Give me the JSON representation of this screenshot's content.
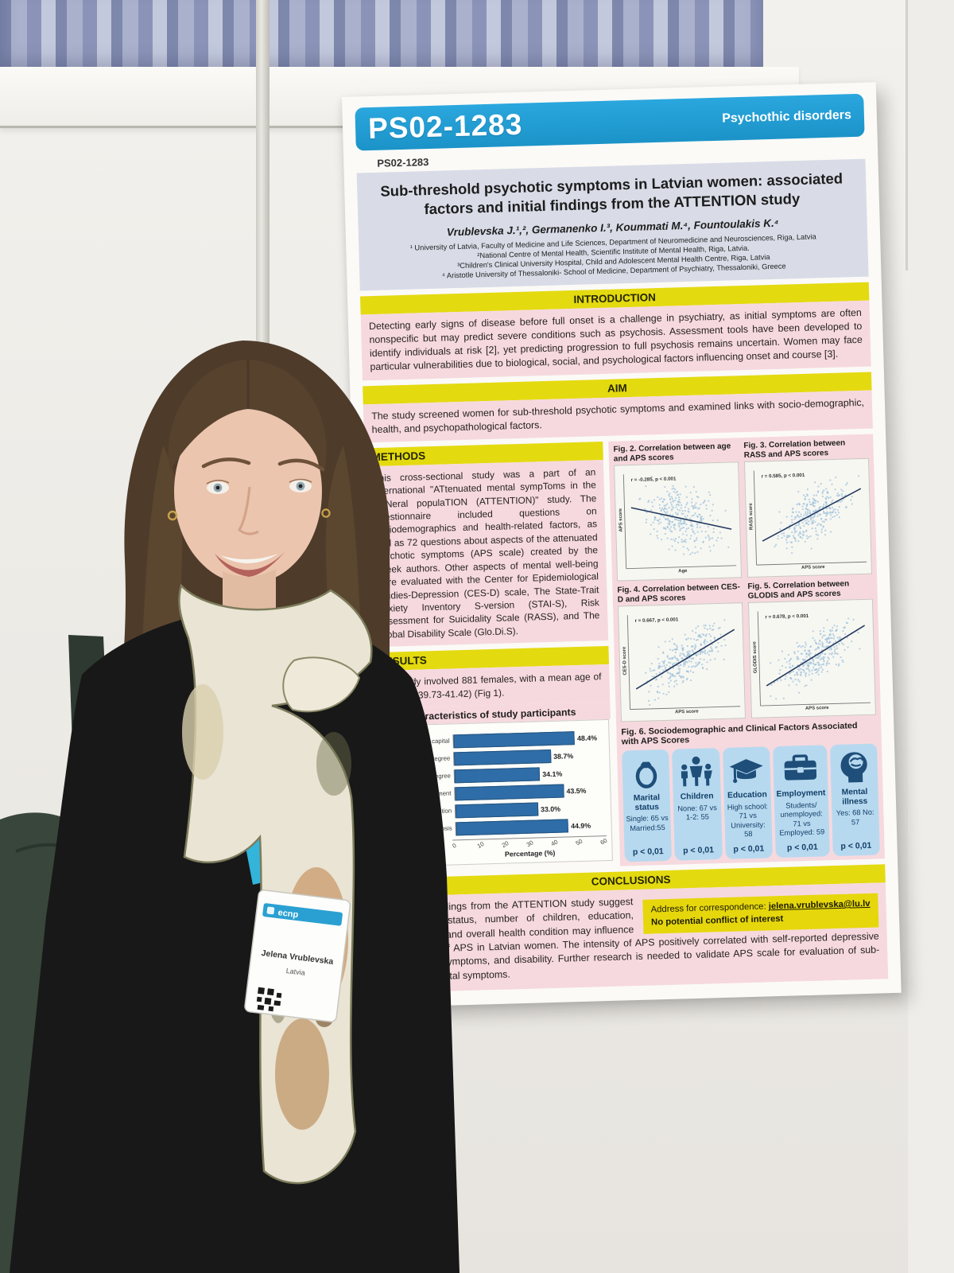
{
  "scene": {
    "lanyard_text": "ecnp",
    "badge": {
      "brand": "ecnp",
      "name": "Jelena Vrublevska",
      "country": "Latvia"
    }
  },
  "poster": {
    "header": {
      "code": "PS02-1283",
      "category": "Psychothic disorders"
    },
    "code_small": "PS02-1283",
    "title": "Sub-threshold psychotic symptoms in Latvian women: associated factors and initial findings from the ATTENTION study",
    "authors": "Vrublevska J.¹,², Germanenko I.³, Koummati M.⁴, Fountoulakis K.⁴",
    "affiliations": [
      "¹ University of Latvia, Faculty of Medicine and Life Sciences, Department of Neuromedicine and Neurosciences, Riga, Latvia",
      "²National Centre of Mental Health, Scientific Institute of Mental Health, Riga, Latvia.",
      "³Children's Clinical University Hospital, Child and Adolescent Mental Health Centre, Riga, Latvia",
      "⁴ Aristotle University of Thessaloniki- School of Medicine, Department of Psychiatry, Thessaloniki, Greece"
    ],
    "sections": {
      "introduction": {
        "heading": "INTRODUCTION",
        "text": "Detecting early signs of disease before full onset is a challenge in psychiatry, as initial symptoms are often nonspecific but may predict severe conditions such as psychosis. Assessment tools have been developed to identify individuals at risk [2], yet predicting progression to full psychosis remains uncertain. Women may face particular vulnerabilities due to biological, social, and psychological factors influencing onset and course [3]."
      },
      "aim": {
        "heading": "AIM",
        "text": "The study screened women for sub-threshold psychotic symptoms and examined links with socio-demographic, health, and psychopathological factors."
      },
      "methods": {
        "heading": "METHODS",
        "text": "This cross-sectional study was a part of an international \"ATtenuated mental sympToms in the gENeral populaTION (ATTENTION)\" study. The questionnaire included questions on sociodemographics and health-related factors, as well as 72 questions about aspects of the attenuated psychotic symptoms (APS scale) created by the Greek authors. Other aspects of mental well-being were evaluated with the Center for Epidemiological Studies-Depression (CES-D) scale, The State-Trait Anxiety Inventory S-version (STAI-S), Risk Assessment for Suicidality Scale (RASS), and The Global Disability Scale (Glo.Di.S)."
      },
      "results": {
        "heading": "RESULTS",
        "text": "The study involved 881 females, with a mean age of 40.57(CI 39.73-41.42) (Fig 1)."
      },
      "conclusions": {
        "heading": "CONCLUSIONS",
        "text": "The initial findings from the ATTENTION study suggest that marital status, number of children, education, employment, and overall health condition may influence the severity of APS in Latvian women. The intensity of APS positively correlated with self-reported depressive and anxiety symptoms, and disability. Further research is needed to validate APS scale for evaluation of sub-threshold mental symptoms."
      }
    },
    "correspondence": {
      "label": "Address for correspondence:",
      "email": "jelena.vrublevska@lu.lv",
      "conflict": "No potential conflict of interest"
    }
  },
  "chart_data": [
    {
      "id": "fig1",
      "type": "bar",
      "title": "Fig 1. Characteristics of study participants",
      "categories": [
        "Reside in capital",
        "Bachelor's degree",
        "Master's degree",
        "Public sector employment",
        "Chronic somatic condition",
        "Mental disease diagnosis"
      ],
      "values": [
        48.4,
        38.7,
        34.1,
        43.5,
        33.0,
        44.9
      ],
      "value_suffix": "%",
      "xlabel": "Percentage (%)",
      "xlim": [
        0,
        60
      ],
      "ticks": [
        0,
        10,
        20,
        30,
        40,
        50,
        60
      ],
      "bar_color": "#2f6da8",
      "orientation": "horizontal"
    },
    {
      "id": "fig2",
      "type": "scatter",
      "title": "Fig. 2. Correlation between age and APS scores",
      "annotation": "r = -0.285, p < 0.001",
      "r": -0.285,
      "xlabel": "Age",
      "ylabel": "APS score",
      "trend": "negative",
      "point_color": "#9cc0da",
      "n_points_depicted": 881
    },
    {
      "id": "fig3",
      "type": "scatter",
      "title": "Fig. 3. Correlation between RASS and APS scores",
      "annotation": "r = 0.585, p < 0.001",
      "r": 0.585,
      "xlabel": "APS score",
      "ylabel": "RASS score",
      "trend": "positive",
      "point_color": "#9cc0da",
      "n_points_depicted": 881
    },
    {
      "id": "fig4",
      "type": "scatter",
      "title": "Fig. 4. Correlation between CES-D and APS scores",
      "annotation": "r = 0.667, p < 0.001",
      "r": 0.667,
      "xlabel": "APS score",
      "ylabel": "CES-D score",
      "trend": "positive",
      "point_color": "#9cc0da",
      "n_points_depicted": 881
    },
    {
      "id": "fig5",
      "type": "scatter",
      "title": "Fig. 5. Correlation between GLODIS and APS scores",
      "annotation": "r = 0.678, p < 0.001",
      "r": 0.678,
      "xlabel": "APS score",
      "ylabel": "GLODIS score",
      "trend": "positive",
      "point_color": "#9cc0da",
      "n_points_depicted": 881
    },
    {
      "id": "fig6",
      "type": "table",
      "title": "Fig. 6. Sociodemographic and Clinical Factors Associated with APS Scores",
      "cards": [
        {
          "icon": "ring-icon",
          "label": "Marital status",
          "detail": "Single: 65 vs Married:55",
          "p": "p < 0,01"
        },
        {
          "icon": "family-icon",
          "label": "Children",
          "detail": "None: 67 vs 1-2: 55",
          "p": "p < 0,01"
        },
        {
          "icon": "graduation-cap-icon",
          "label": "Education",
          "detail": "High school: 71 vs University: 58",
          "p": "p < 0,01"
        },
        {
          "icon": "briefcase-icon",
          "label": "Employment",
          "detail": "Students/ unemployed: 71 vs Employed: 59",
          "p": "p < 0,01"
        },
        {
          "icon": "head-brain-icon",
          "label": "Mental illness",
          "detail": "Yes: 68 No: 57",
          "p": "p < 0,01"
        }
      ],
      "card_bg": "#b7d9ef",
      "icon_color": "#1e4e79"
    }
  ]
}
